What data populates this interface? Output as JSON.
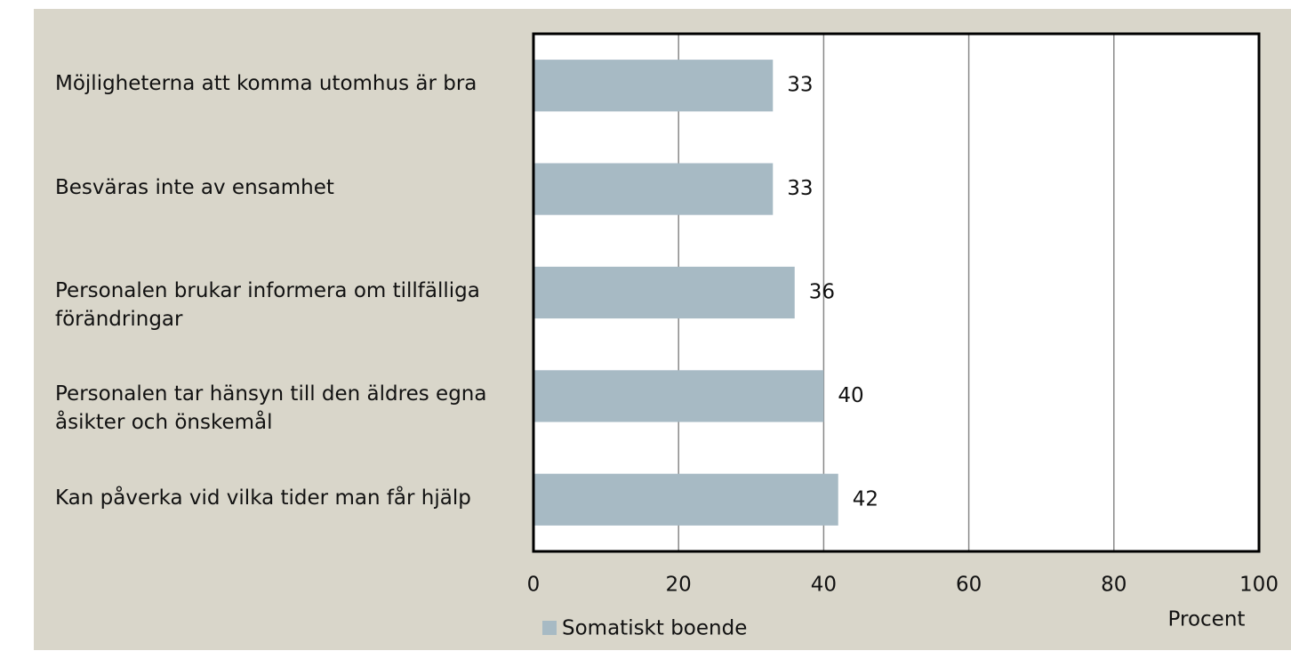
{
  "chart_data": {
    "type": "barh",
    "categories": [
      "Möjligheterna att komma utomhus är bra",
      "Besväras inte av ensamhet",
      "Personalen brukar informera om tillfälliga förändringar",
      "Personalen tar hänsyn till den äldres egna åsikter och önskemål",
      "Kan påverka vid vilka tider man får hjälp"
    ],
    "series": [
      {
        "name": "Somatiskt boende",
        "color": "#a7bac4",
        "values": [
          33,
          33,
          36,
          40,
          42
        ]
      }
    ],
    "xlim": [
      0,
      100
    ],
    "xticks": [
      0,
      20,
      40,
      60,
      80,
      100
    ],
    "grid": true,
    "x_label": "Procent",
    "legend": "bottom"
  }
}
